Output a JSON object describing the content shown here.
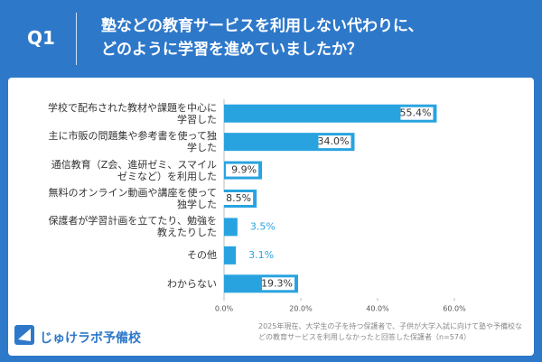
{
  "header": {
    "label": "Q1",
    "question": [
      "塾などの教育サービスを利用しない代わりに、",
      "どのように学習を進めていましたか？"
    ]
  },
  "chart_data": {
    "type": "hbar",
    "categories": [
      "学校で配布された教材や課題を中心に学習した",
      "主に市販の問題集や参考書を使って独学した",
      "通信教育（Z会、進研ゼミ、スマイルゼミなど）を利用した",
      "無料のオンライン動画や講座を使って独学した",
      "保護者が学習計画を立てたり、勉強を教えたりした",
      "その他",
      "わからない"
    ],
    "values": [
      55.4,
      34.0,
      9.9,
      8.5,
      3.5,
      3.1,
      19.3
    ],
    "value_labels": [
      "55.4%",
      "34.0%",
      "9.9%",
      "8.5%",
      "3.5%",
      "3.1%",
      "19.3%"
    ],
    "color": "#29a3e0",
    "xlim": [
      0,
      60
    ],
    "xticks": [
      {
        "value": 0,
        "label": "0.0%"
      },
      {
        "value": 20,
        "label": "20.0%"
      },
      {
        "value": 40,
        "label": "40.0%"
      },
      {
        "value": 60,
        "label": "60.0%"
      }
    ]
  },
  "footer": {
    "note": "2025年現在、大学生の子を持つ保護者で、子供が大学入試に向けて塾や予備校などの教育サービスを利用しなかったと回答した保護者（n=574）",
    "logo": "じゅけラボ予備校"
  }
}
